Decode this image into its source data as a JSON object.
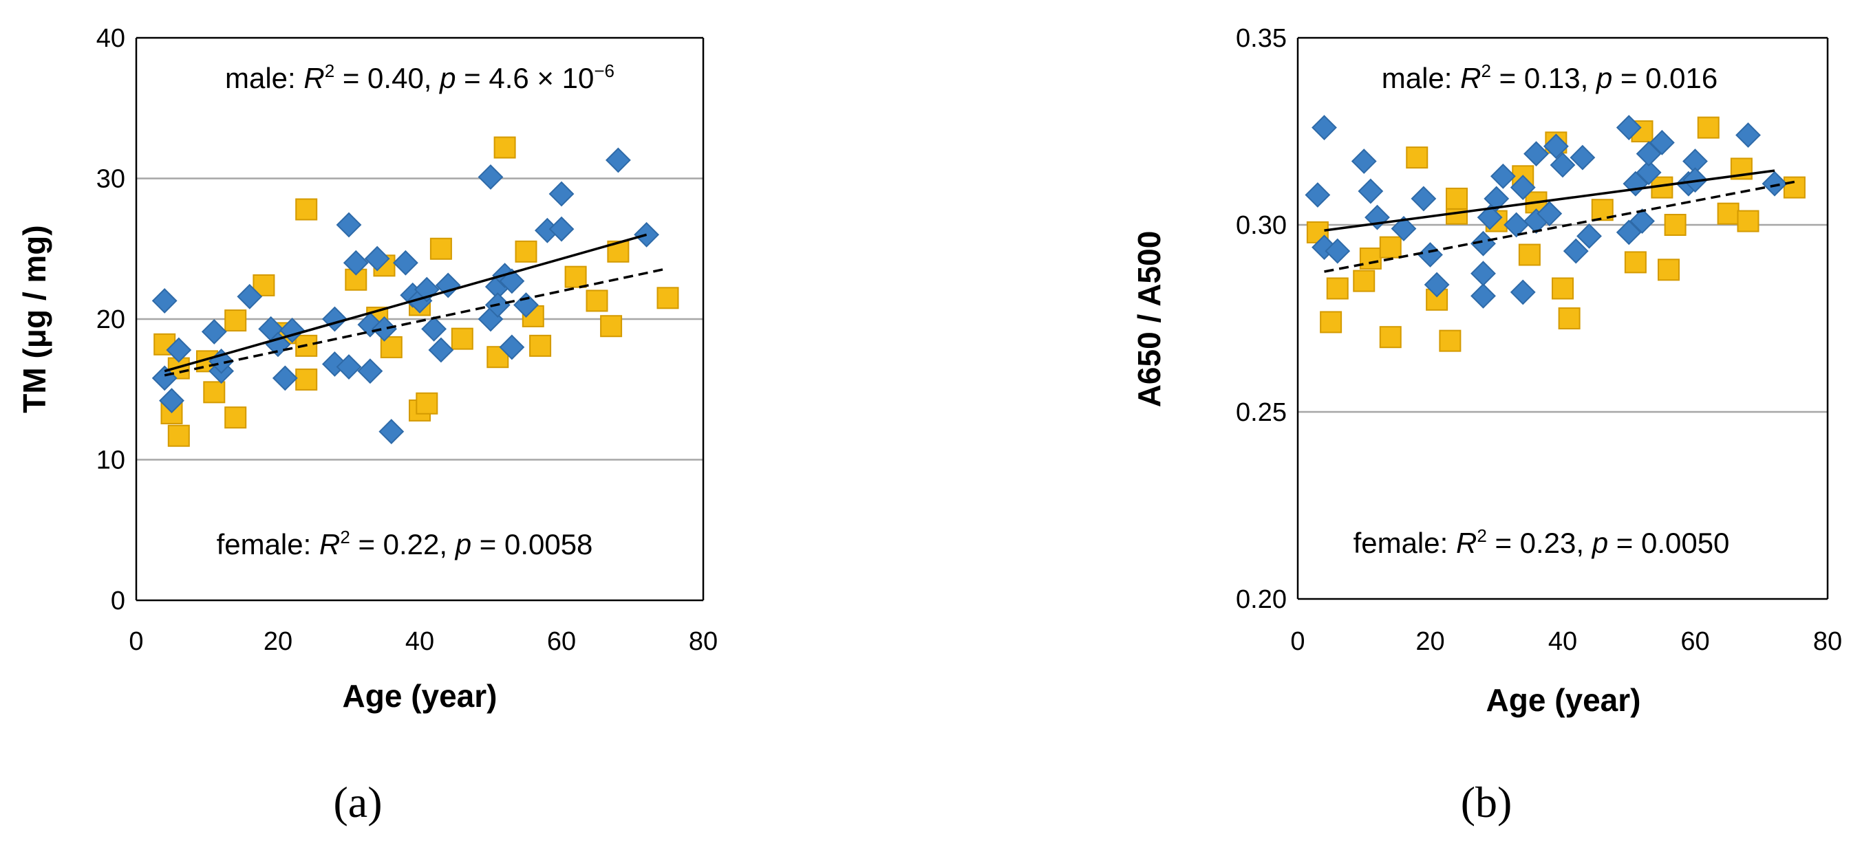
{
  "chart_data": [
    {
      "id": "a",
      "type": "scatter",
      "panel_label": "(a)",
      "xlabel": "Age (year)",
      "ylabel": "TM (μg / mg)",
      "xlim": [
        0,
        80
      ],
      "ylim": [
        0,
        40
      ],
      "xticks": [
        "0",
        "20",
        "40",
        "60",
        "80"
      ],
      "yticks": [
        "0",
        "10",
        "20",
        "30",
        "40"
      ],
      "ytick_values": [
        0,
        10,
        20,
        30,
        40
      ],
      "xtick_values": [
        0,
        20,
        40,
        60,
        80
      ],
      "gridlines_y": [
        10,
        20,
        30
      ],
      "annotations": {
        "male": {
          "prefix": "male:  ",
          "r": "R",
          "sup": "2",
          "mid": " = 0.40,  ",
          "p": "p",
          "value": " = 4.6 × 10",
          "exp": "−6"
        },
        "female": {
          "prefix": "female:  ",
          "r": "R",
          "sup": "2",
          "mid": " = 0.22,  ",
          "p": "p",
          "value": " = 0.0058"
        }
      },
      "series": [
        {
          "name": "male",
          "marker": "diamond",
          "color": "#3c7fc4",
          "edge": "#2e6aa8",
          "trendline": "solid",
          "trend": [
            [
              4,
              16.3
            ],
            [
              72,
              26.0
            ]
          ],
          "points": [
            [
              4,
              21.3
            ],
            [
              4,
              15.8
            ],
            [
              5,
              14.2
            ],
            [
              6,
              17.8
            ],
            [
              11,
              19.1
            ],
            [
              12,
              16.3
            ],
            [
              12,
              17.0
            ],
            [
              16,
              21.6
            ],
            [
              19,
              19.3
            ],
            [
              20,
              18.2
            ],
            [
              21,
              15.8
            ],
            [
              22,
              19.2
            ],
            [
              28,
              20.0
            ],
            [
              28,
              16.8
            ],
            [
              30,
              26.7
            ],
            [
              30,
              16.6
            ],
            [
              31,
              24.0
            ],
            [
              33,
              16.3
            ],
            [
              33,
              19.6
            ],
            [
              34,
              24.3
            ],
            [
              35,
              19.3
            ],
            [
              36,
              12.0
            ],
            [
              38,
              24.0
            ],
            [
              39,
              21.7
            ],
            [
              40,
              21.3
            ],
            [
              41,
              22.1
            ],
            [
              42,
              19.3
            ],
            [
              43,
              17.8
            ],
            [
              44,
              22.4
            ],
            [
              50,
              30.1
            ],
            [
              50,
              20.0
            ],
            [
              51,
              22.3
            ],
            [
              52,
              23.1
            ],
            [
              53,
              22.7
            ],
            [
              53,
              18.0
            ],
            [
              55,
              21.0
            ],
            [
              58,
              26.3
            ],
            [
              60,
              28.9
            ],
            [
              60,
              26.4
            ],
            [
              68,
              31.3
            ],
            [
              72,
              26.0
            ],
            [
              51,
              21.0
            ]
          ]
        },
        {
          "name": "female",
          "marker": "square",
          "color": "#f5bb14",
          "edge": "#d49a00",
          "trendline": "dashed",
          "trend": [
            [
              4,
              16.0
            ],
            [
              75,
              23.6
            ]
          ],
          "points": [
            [
              4,
              18.2
            ],
            [
              5,
              13.3
            ],
            [
              6,
              16.5
            ],
            [
              6,
              11.7
            ],
            [
              10,
              17.0
            ],
            [
              11,
              14.8
            ],
            [
              14,
              13.0
            ],
            [
              14,
              19.9
            ],
            [
              18,
              22.4
            ],
            [
              21,
              19.0
            ],
            [
              24,
              27.8
            ],
            [
              24,
              15.7
            ],
            [
              24,
              18.1
            ],
            [
              31,
              22.8
            ],
            [
              34,
              20.1
            ],
            [
              35,
              23.8
            ],
            [
              36,
              18.0
            ],
            [
              40,
              21.0
            ],
            [
              40,
              13.5
            ],
            [
              41,
              14.0
            ],
            [
              43,
              25.0
            ],
            [
              46,
              18.6
            ],
            [
              51,
              17.3
            ],
            [
              52,
              32.2
            ],
            [
              55,
              24.8
            ],
            [
              56,
              20.2
            ],
            [
              57,
              18.1
            ],
            [
              62,
              23.0
            ],
            [
              65,
              21.3
            ],
            [
              67,
              19.5
            ],
            [
              68,
              24.8
            ],
            [
              75,
              21.5
            ]
          ]
        }
      ]
    },
    {
      "id": "b",
      "type": "scatter",
      "panel_label": "(b)",
      "xlabel": "Age (year)",
      "ylabel": "A650 / A500",
      "xlim": [
        0,
        80
      ],
      "ylim": [
        0.2,
        0.35
      ],
      "xticks": [
        "0",
        "20",
        "40",
        "60",
        "80"
      ],
      "yticks": [
        "0.20",
        "0.25",
        "0.30",
        "0.35"
      ],
      "ytick_values": [
        0.2,
        0.25,
        0.3,
        0.35
      ],
      "xtick_values": [
        0,
        20,
        40,
        60,
        80
      ],
      "gridlines_y": [
        0.25,
        0.3
      ],
      "annotations": {
        "male": {
          "prefix": "male:  ",
          "r": "R",
          "sup": "2",
          "mid": " = 0.13,  ",
          "p": "p",
          "value": " = 0.016"
        },
        "female": {
          "prefix": "female:  ",
          "r": "R",
          "sup": "2",
          "mid": " = 0.23,  ",
          "p": "p",
          "value": " = 0.0050"
        }
      },
      "series": [
        {
          "name": "male",
          "marker": "diamond",
          "color": "#3c7fc4",
          "edge": "#2e6aa8",
          "trendline": "solid",
          "trend": [
            [
              4,
              0.2985
            ],
            [
              72,
              0.3145
            ]
          ],
          "points": [
            [
              3,
              0.308
            ],
            [
              4,
              0.294
            ],
            [
              4,
              0.326
            ],
            [
              6,
              0.293
            ],
            [
              10,
              0.317
            ],
            [
              11,
              0.309
            ],
            [
              12,
              0.302
            ],
            [
              16,
              0.299
            ],
            [
              19,
              0.307
            ],
            [
              20,
              0.292
            ],
            [
              21,
              0.284
            ],
            [
              28,
              0.281
            ],
            [
              28,
              0.287
            ],
            [
              28,
              0.295
            ],
            [
              29,
              0.302
            ],
            [
              30,
              0.307
            ],
            [
              31,
              0.313
            ],
            [
              33,
              0.3
            ],
            [
              34,
              0.282
            ],
            [
              34,
              0.31
            ],
            [
              36,
              0.301
            ],
            [
              36,
              0.319
            ],
            [
              38,
              0.303
            ],
            [
              39,
              0.321
            ],
            [
              40,
              0.316
            ],
            [
              42,
              0.293
            ],
            [
              43,
              0.318
            ],
            [
              44,
              0.297
            ],
            [
              50,
              0.326
            ],
            [
              50,
              0.298
            ],
            [
              51,
              0.311
            ],
            [
              52,
              0.301
            ],
            [
              53,
              0.314
            ],
            [
              53,
              0.319
            ],
            [
              55,
              0.322
            ],
            [
              59,
              0.311
            ],
            [
              60,
              0.317
            ],
            [
              60,
              0.312
            ],
            [
              68,
              0.324
            ],
            [
              72,
              0.311
            ]
          ]
        },
        {
          "name": "female",
          "marker": "square",
          "color": "#f5bb14",
          "edge": "#d49a00",
          "trendline": "dashed",
          "trend": [
            [
              4,
              0.2875
            ],
            [
              75,
              0.3115
            ]
          ],
          "points": [
            [
              3,
              0.298
            ],
            [
              5,
              0.274
            ],
            [
              6,
              0.283
            ],
            [
              10,
              0.285
            ],
            [
              11,
              0.291
            ],
            [
              14,
              0.27
            ],
            [
              14,
              0.294
            ],
            [
              18,
              0.318
            ],
            [
              21,
              0.28
            ],
            [
              23,
              0.269
            ],
            [
              24,
              0.303
            ],
            [
              24,
              0.307
            ],
            [
              30,
              0.301
            ],
            [
              34,
              0.313
            ],
            [
              35,
              0.292
            ],
            [
              36,
              0.306
            ],
            [
              39,
              0.322
            ],
            [
              40,
              0.283
            ],
            [
              41,
              0.275
            ],
            [
              46,
              0.304
            ],
            [
              51,
              0.29
            ],
            [
              52,
              0.325
            ],
            [
              55,
              0.31
            ],
            [
              56,
              0.288
            ],
            [
              57,
              0.3
            ],
            [
              62,
              0.326
            ],
            [
              65,
              0.303
            ],
            [
              67,
              0.315
            ],
            [
              68,
              0.301
            ],
            [
              75,
              0.31
            ]
          ]
        }
      ]
    }
  ]
}
